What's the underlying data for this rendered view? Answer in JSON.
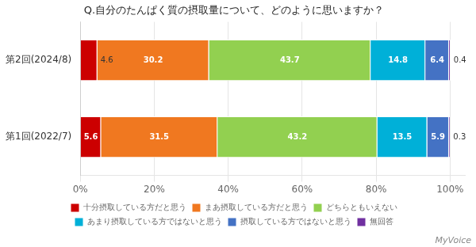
{
  "chart_data": {
    "type": "bar",
    "orientation": "horizontal",
    "stacked": true,
    "title": "Q.自分のたんぱく質の摂取量について、どのように思いますか？",
    "categories": [
      "第2回(2024/8)",
      "第1回(2022/7)"
    ],
    "series": [
      {
        "name": "十分摂取している方だと思う",
        "color": "#cc0000",
        "values": [
          4.6,
          5.6
        ]
      },
      {
        "name": "まあ摂取している方だと思う",
        "color": "#f07820",
        "values": [
          30.2,
          31.5
        ]
      },
      {
        "name": "どちらともいえない",
        "color": "#92d050",
        "values": [
          43.7,
          43.2
        ]
      },
      {
        "name": "あまり摂取している方ではないと思う",
        "color": "#00b0d8",
        "values": [
          14.8,
          13.5
        ]
      },
      {
        "name": "摂取している方ではないと思う",
        "color": "#4472c4",
        "values": [
          6.4,
          5.9
        ]
      },
      {
        "name": "無回答",
        "color": "#7030a0",
        "values": [
          0.4,
          0.3
        ]
      }
    ],
    "xlim": [
      0,
      104
    ],
    "xticks": [
      {
        "value": 0,
        "label": "0%"
      },
      {
        "value": 20,
        "label": "20%"
      },
      {
        "value": 40,
        "label": "40%"
      },
      {
        "value": 60,
        "label": "60%"
      },
      {
        "value": 80,
        "label": "80%"
      },
      {
        "value": 100,
        "label": "100%"
      }
    ],
    "grid": true,
    "legend": "bottom",
    "data_labels": true,
    "annotations": [
      "MyVoice"
    ]
  }
}
